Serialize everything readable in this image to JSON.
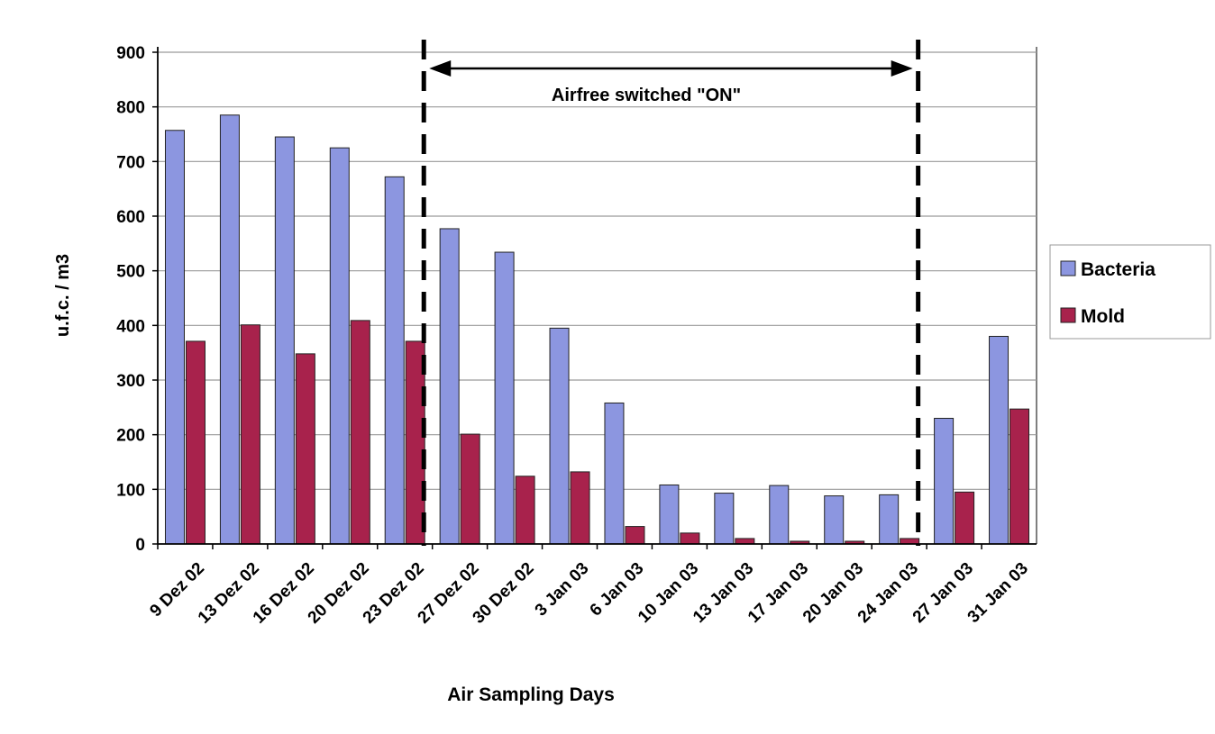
{
  "chart_data": {
    "type": "bar",
    "categories": [
      "9 Dez 02",
      "13 Dez 02",
      "16 Dez 02",
      "20 Dez 02",
      "23 Dez 02",
      "27 Dez 02",
      "30 Dez 02",
      "3 Jan 03",
      "6 Jan 03",
      "10 Jan 03",
      "13 Jan 03",
      "17 Jan 03",
      "20 Jan 03",
      "24 Jan 03",
      "27 Jan 03",
      "31 Jan 03"
    ],
    "series": [
      {
        "name": "Bacteria",
        "color": "#8c96e0",
        "values": [
          757,
          785,
          745,
          725,
          672,
          577,
          534,
          395,
          258,
          108,
          93,
          107,
          88,
          90,
          230,
          380
        ]
      },
      {
        "name": "Mold",
        "color": "#a8224c",
        "values": [
          371,
          401,
          348,
          409,
          371,
          201,
          124,
          132,
          32,
          20,
          10,
          5,
          5,
          10,
          95,
          247
        ]
      }
    ],
    "title": "",
    "xlabel": "Air Sampling Days",
    "ylabel": "u.f.c. / m3",
    "ylim": [
      0,
      900
    ],
    "yticks": [
      0,
      100,
      200,
      300,
      400,
      500,
      600,
      700,
      800,
      900
    ],
    "grid": true,
    "legend_position": "right",
    "annotation": {
      "text": "Airfree switched \"ON\"",
      "from_category": "23 Dez 02",
      "to_category": "24 Jan 03",
      "style": "dashed-vertical-lines-with-double-arrow"
    }
  }
}
